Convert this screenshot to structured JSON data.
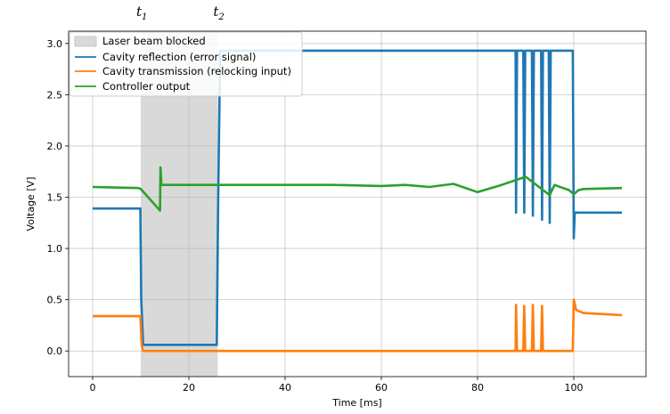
{
  "chart_data": {
    "type": "line",
    "xlabel": "Time [ms]",
    "ylabel": "Voltage [V]",
    "xlim": [
      -5,
      115
    ],
    "ylim": [
      -0.25,
      3.12
    ],
    "xticks": [
      0,
      20,
      40,
      60,
      80,
      100
    ],
    "yticks": [
      0.0,
      0.5,
      1.0,
      1.5,
      2.0,
      2.5,
      3.0
    ],
    "xtick_labels": [
      "0",
      "20",
      "40",
      "60",
      "80",
      "100"
    ],
    "ytick_labels": [
      "0.0",
      "0.5",
      "1.0",
      "1.5",
      "2.0",
      "2.5",
      "3.0"
    ],
    "grid": true,
    "legend_position": "top-left",
    "markers": [
      {
        "label": "t",
        "sub": "1",
        "x": 10
      },
      {
        "label": "t",
        "sub": "2",
        "x": 26
      }
    ],
    "shaded_region": {
      "name": "Laser beam blocked",
      "x": [
        10,
        26
      ],
      "color": "#d9d9d9"
    },
    "series": [
      {
        "name": "Cavity reflection (error signal)",
        "color": "#1f77b4",
        "x": [
          0,
          9.9,
          10.1,
          10.5,
          25.8,
          26.1,
          26.5,
          87.9,
          88.0,
          88.2,
          88.4,
          89.5,
          89.7,
          89.9,
          91.3,
          91.5,
          91.7,
          93.2,
          93.4,
          93.6,
          94.8,
          95.0,
          95.2,
          99.8,
          100.0,
          100.2,
          110
        ],
        "y": [
          1.39,
          1.39,
          0.5,
          0.06,
          0.06,
          1.5,
          2.93,
          2.93,
          1.35,
          2.93,
          2.93,
          2.93,
          1.35,
          2.93,
          2.93,
          1.32,
          2.93,
          2.93,
          1.28,
          2.93,
          2.93,
          1.25,
          2.93,
          2.93,
          1.1,
          1.35,
          1.35
        ]
      },
      {
        "name": "Cavity transmission (relocking input)",
        "color": "#ff7f0e",
        "x": [
          0,
          9.9,
          10.2,
          10.5,
          87.9,
          88.0,
          88.2,
          89.5,
          89.7,
          89.9,
          91.3,
          91.5,
          91.7,
          93.2,
          93.4,
          93.6,
          99.8,
          100.0,
          100.5,
          102,
          110
        ],
        "y": [
          0.34,
          0.34,
          0.05,
          0.0,
          0.0,
          0.45,
          0.0,
          0.0,
          0.44,
          0.0,
          0.0,
          0.45,
          0.0,
          0.0,
          0.44,
          0.0,
          0.0,
          0.5,
          0.4,
          0.37,
          0.35
        ]
      },
      {
        "name": "Controller output",
        "color": "#2ca02c",
        "x": [
          0,
          9.5,
          10,
          14,
          14.1,
          14.3,
          14.5,
          26,
          30,
          40,
          50,
          60,
          65,
          70,
          75,
          80,
          85,
          90,
          95,
          96,
          99,
          100,
          101,
          102,
          110
        ],
        "y": [
          1.6,
          1.59,
          1.58,
          1.37,
          1.79,
          1.62,
          1.62,
          1.62,
          1.62,
          1.62,
          1.62,
          1.61,
          1.62,
          1.6,
          1.63,
          1.55,
          1.62,
          1.7,
          1.52,
          1.62,
          1.57,
          1.53,
          1.57,
          1.58,
          1.59
        ]
      }
    ]
  }
}
